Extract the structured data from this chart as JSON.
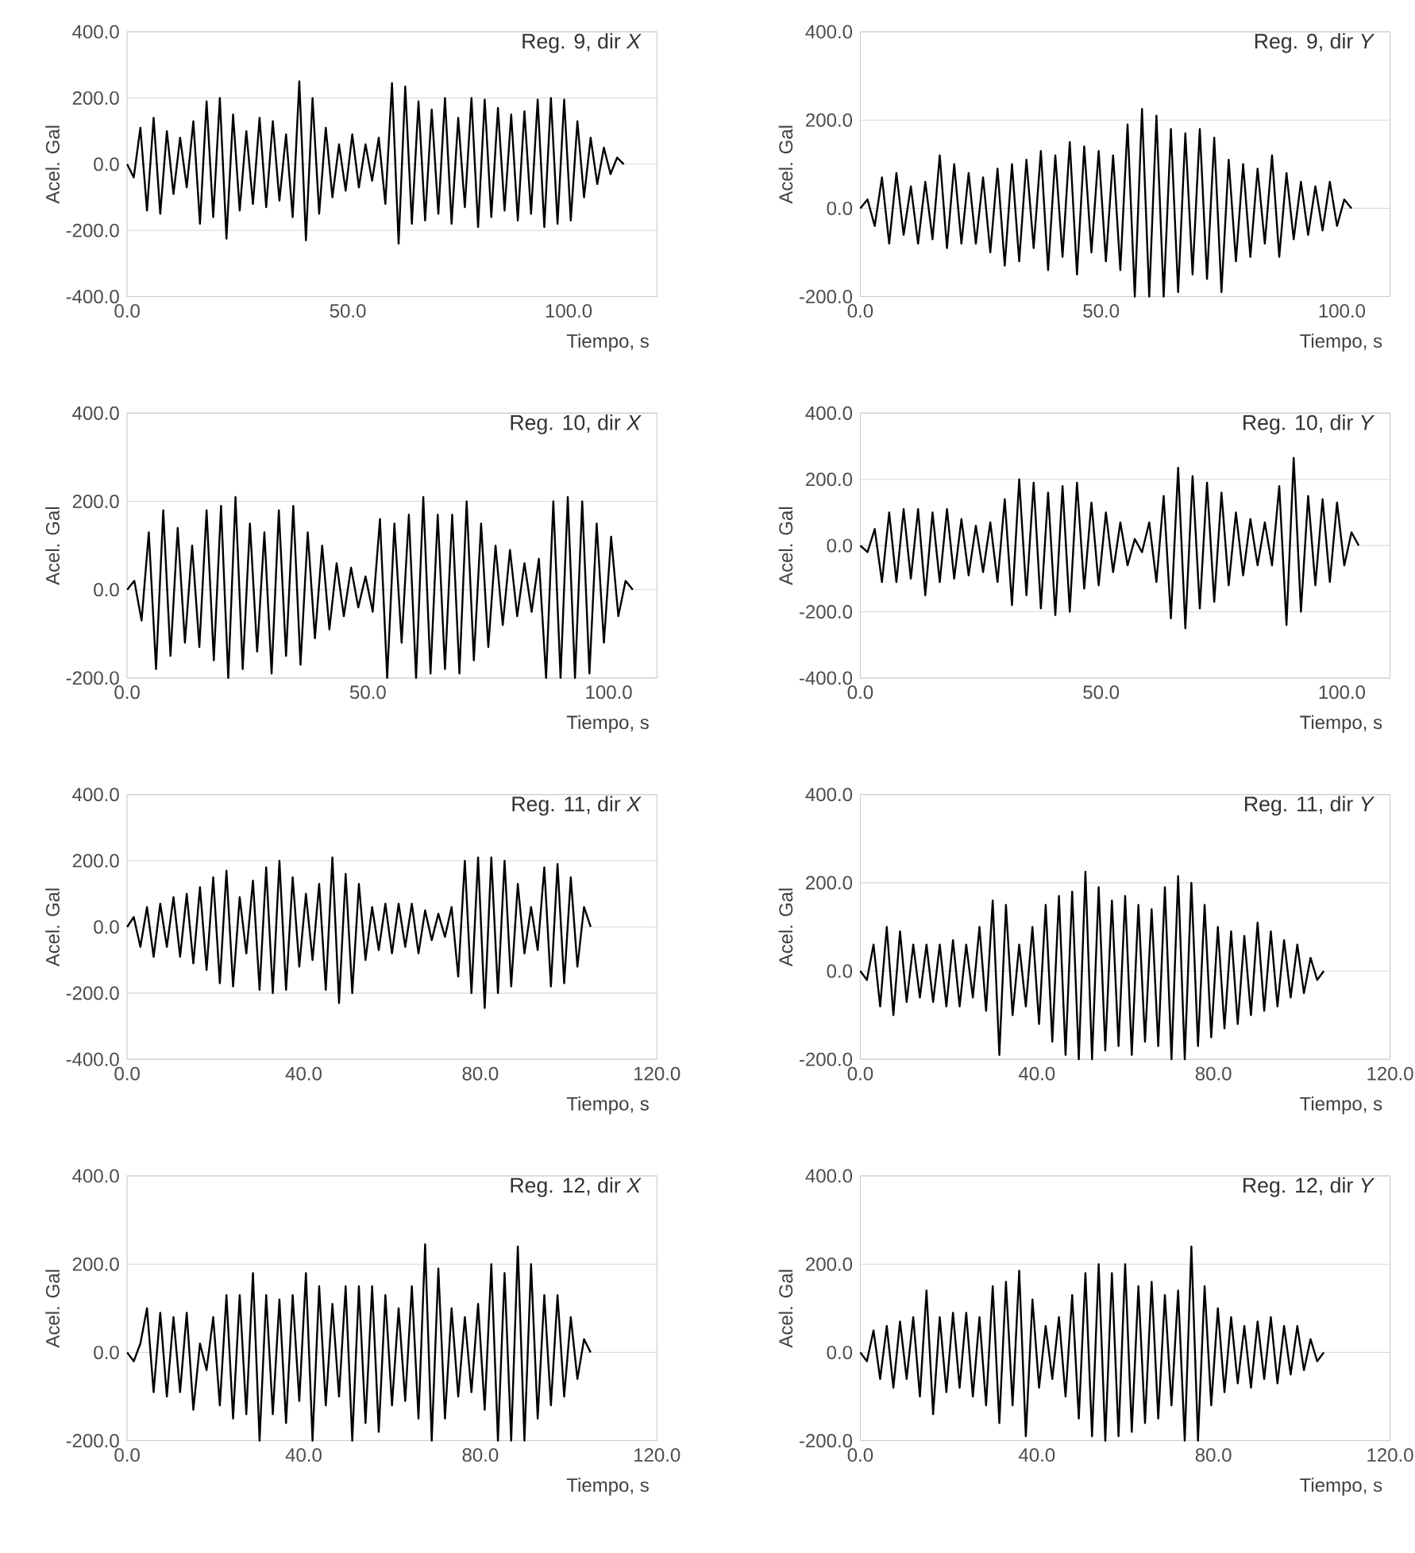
{
  "chart_data": [
    {
      "type": "line",
      "title": "Reg. 9, dir *X*",
      "xlabel": "Tiempo, s",
      "ylabel": "Acel. Gal",
      "xlim": [
        0,
        120
      ],
      "ylim": [
        -400,
        400
      ],
      "grid": "y",
      "xticks": [
        {
          "value": 0,
          "label": "0.0"
        },
        {
          "value": 50,
          "label": "50.0"
        },
        {
          "value": 100,
          "label": "100.0"
        }
      ],
      "yticks": [
        {
          "value": -400,
          "label": "-400.0"
        },
        {
          "value": -200,
          "label": "-200.0"
        },
        {
          "value": 0,
          "label": "0.0"
        },
        {
          "value": 200,
          "label": "200.0"
        },
        {
          "value": 400,
          "label": "400.0"
        }
      ],
      "series": [
        {
          "color": "#000000",
          "x": [
            0,
            1.5,
            3,
            4.5,
            6,
            7.5,
            9,
            10.5,
            12,
            13.5,
            15,
            16.5,
            18,
            19.5,
            21,
            22.5,
            24,
            25.5,
            27,
            28.5,
            30,
            31.5,
            33,
            34.5,
            36,
            37.5,
            39,
            40.5,
            42,
            43.5,
            45,
            46.5,
            48,
            49.5,
            51,
            52.5,
            54,
            55.5,
            57,
            58.5,
            60,
            61.5,
            63,
            64.5,
            66,
            67.5,
            69,
            70.5,
            72,
            73.5,
            75,
            76.5,
            78,
            79.5,
            81,
            82.5,
            84,
            85.5,
            87,
            88.5,
            90,
            91.5,
            93,
            94.5,
            96,
            97.5,
            99,
            100.5,
            102,
            103.5,
            105,
            106.5,
            108,
            109.5,
            111,
            112.5
          ],
          "values": [
            0,
            -40,
            110,
            -140,
            140,
            -150,
            100,
            -90,
            80,
            -70,
            130,
            -180,
            190,
            -160,
            200,
            -225,
            150,
            -140,
            100,
            -120,
            140,
            -130,
            130,
            -110,
            90,
            -160,
            250,
            -230,
            200,
            -150,
            110,
            -100,
            60,
            -80,
            90,
            -70,
            60,
            -50,
            80,
            -120,
            245,
            -240,
            235,
            -180,
            190,
            -170,
            165,
            -150,
            200,
            -180,
            140,
            -130,
            200,
            -190,
            195,
            -160,
            170,
            -140,
            150,
            -170,
            160,
            -150,
            195,
            -190,
            200,
            -180,
            195,
            -170,
            130,
            -100,
            80,
            -60,
            50,
            -30,
            20,
            0
          ]
        }
      ]
    },
    {
      "type": "line",
      "title": "Reg. 9, dir *Y*",
      "xlabel": "Tiempo, s",
      "ylabel": "Acel. Gal",
      "xlim": [
        0,
        110
      ],
      "ylim": [
        -200,
        400
      ],
      "grid": "y",
      "xticks": [
        {
          "value": 0,
          "label": "0.0"
        },
        {
          "value": 50,
          "label": "50.0"
        },
        {
          "value": 100,
          "label": "100.0"
        }
      ],
      "yticks": [
        {
          "value": -200,
          "label": "-200.0"
        },
        {
          "value": 0,
          "label": "0.0"
        },
        {
          "value": 200,
          "label": "200.0"
        },
        {
          "value": 400,
          "label": "400.0"
        }
      ],
      "series": [
        {
          "color": "#000000",
          "x": [
            0,
            1.5,
            3,
            4.5,
            6,
            7.5,
            9,
            10.5,
            12,
            13.5,
            15,
            16.5,
            18,
            19.5,
            21,
            22.5,
            24,
            25.5,
            27,
            28.5,
            30,
            31.5,
            33,
            34.5,
            36,
            37.5,
            39,
            40.5,
            42,
            43.5,
            45,
            46.5,
            48,
            49.5,
            51,
            52.5,
            54,
            55.5,
            57,
            58.5,
            60,
            61.5,
            63,
            64.5,
            66,
            67.5,
            69,
            70.5,
            72,
            73.5,
            75,
            76.5,
            78,
            79.5,
            81,
            82.5,
            84,
            85.5,
            87,
            88.5,
            90,
            91.5,
            93,
            94.5,
            96,
            97.5,
            99,
            100.5,
            102
          ],
          "values": [
            0,
            20,
            -40,
            70,
            -80,
            80,
            -60,
            50,
            -80,
            60,
            -70,
            120,
            -90,
            100,
            -80,
            80,
            -80,
            70,
            -100,
            90,
            -130,
            100,
            -120,
            110,
            -90,
            130,
            -140,
            120,
            -110,
            150,
            -150,
            140,
            -100,
            130,
            -120,
            120,
            -140,
            190,
            -200,
            225,
            -200,
            210,
            -200,
            180,
            -190,
            170,
            -150,
            180,
            -160,
            160,
            -190,
            110,
            -120,
            100,
            -110,
            90,
            -80,
            120,
            -110,
            80,
            -70,
            60,
            -60,
            50,
            -50,
            60,
            -40,
            20,
            0
          ]
        }
      ]
    },
    {
      "type": "line",
      "title": "Reg. 10, dir *X*",
      "xlabel": "Tiempo, s",
      "ylabel": "Acel. Gal",
      "xlim": [
        0,
        110
      ],
      "ylim": [
        -200,
        400
      ],
      "grid": "y",
      "xticks": [
        {
          "value": 0,
          "label": "0.0"
        },
        {
          "value": 50,
          "label": "50.0"
        },
        {
          "value": 100,
          "label": "100.0"
        }
      ],
      "yticks": [
        {
          "value": -200,
          "label": "-200.0"
        },
        {
          "value": 0,
          "label": "0.0"
        },
        {
          "value": 200,
          "label": "200.0"
        },
        {
          "value": 400,
          "label": "400.0"
        }
      ],
      "series": [
        {
          "color": "#000000",
          "x": [
            0,
            1.5,
            3,
            4.5,
            6,
            7.5,
            9,
            10.5,
            12,
            13.5,
            15,
            16.5,
            18,
            19.5,
            21,
            22.5,
            24,
            25.5,
            27,
            28.5,
            30,
            31.5,
            33,
            34.5,
            36,
            37.5,
            39,
            40.5,
            42,
            43.5,
            45,
            46.5,
            48,
            49.5,
            51,
            52.5,
            54,
            55.5,
            57,
            58.5,
            60,
            61.5,
            63,
            64.5,
            66,
            67.5,
            69,
            70.5,
            72,
            73.5,
            75,
            76.5,
            78,
            79.5,
            81,
            82.5,
            84,
            85.5,
            87,
            88.5,
            90,
            91.5,
            93,
            94.5,
            96,
            97.5,
            99,
            100.5,
            102,
            103.5,
            105
          ],
          "values": [
            0,
            20,
            -70,
            130,
            -180,
            180,
            -150,
            140,
            -120,
            100,
            -130,
            180,
            -160,
            190,
            -200,
            210,
            -180,
            150,
            -140,
            130,
            -190,
            180,
            -150,
            190,
            -170,
            130,
            -110,
            100,
            -90,
            60,
            -60,
            50,
            -40,
            30,
            -50,
            160,
            -200,
            150,
            -120,
            170,
            -200,
            210,
            -190,
            170,
            -180,
            170,
            -190,
            200,
            -160,
            150,
            -130,
            100,
            -80,
            90,
            -60,
            60,
            -50,
            70,
            -200,
            200,
            -200,
            210,
            -200,
            200,
            -190,
            150,
            -120,
            120,
            -60,
            20,
            0
          ]
        }
      ]
    },
    {
      "type": "line",
      "title": "Reg. 10, dir *Y*",
      "xlabel": "Tiempo, s",
      "ylabel": "Acel. Gal",
      "xlim": [
        0,
        110
      ],
      "ylim": [
        -400,
        400
      ],
      "grid": "y",
      "xticks": [
        {
          "value": 0,
          "label": "0.0"
        },
        {
          "value": 50,
          "label": "50.0"
        },
        {
          "value": 100,
          "label": "100.0"
        }
      ],
      "yticks": [
        {
          "value": -400,
          "label": "-400.0"
        },
        {
          "value": -200,
          "label": "-200.0"
        },
        {
          "value": 0,
          "label": "0.0"
        },
        {
          "value": 200,
          "label": "200.0"
        },
        {
          "value": 400,
          "label": "400.0"
        }
      ],
      "series": [
        {
          "color": "#000000",
          "x": [
            0,
            1.5,
            3,
            4.5,
            6,
            7.5,
            9,
            10.5,
            12,
            13.5,
            15,
            16.5,
            18,
            19.5,
            21,
            22.5,
            24,
            25.5,
            27,
            28.5,
            30,
            31.5,
            33,
            34.5,
            36,
            37.5,
            39,
            40.5,
            42,
            43.5,
            45,
            46.5,
            48,
            49.5,
            51,
            52.5,
            54,
            55.5,
            57,
            58.5,
            60,
            61.5,
            63,
            64.5,
            66,
            67.5,
            69,
            70.5,
            72,
            73.5,
            75,
            76.5,
            78,
            79.5,
            81,
            82.5,
            84,
            85.5,
            87,
            88.5,
            90,
            91.5,
            93,
            94.5,
            96,
            97.5,
            99,
            100.5,
            102,
            103.5
          ],
          "values": [
            0,
            -20,
            50,
            -110,
            100,
            -110,
            110,
            -100,
            110,
            -150,
            100,
            -110,
            110,
            -100,
            80,
            -90,
            60,
            -80,
            70,
            -110,
            140,
            -180,
            200,
            -150,
            190,
            -190,
            160,
            -210,
            180,
            -200,
            190,
            -130,
            130,
            -120,
            100,
            -80,
            70,
            -60,
            20,
            -20,
            70,
            -110,
            150,
            -220,
            235,
            -250,
            210,
            -190,
            190,
            -170,
            160,
            -120,
            100,
            -90,
            80,
            -60,
            70,
            -60,
            180,
            -240,
            265,
            -200,
            150,
            -120,
            140,
            -110,
            130,
            -60,
            40,
            0
          ]
        }
      ]
    },
    {
      "type": "line",
      "title": "Reg. 11, dir *X*",
      "xlabel": "Tiempo, s",
      "ylabel": "Acel. Gal",
      "xlim": [
        0,
        120
      ],
      "ylim": [
        -400,
        400
      ],
      "grid": "y",
      "xticks": [
        {
          "value": 0,
          "label": "0.0"
        },
        {
          "value": 40,
          "label": "40.0"
        },
        {
          "value": 80,
          "label": "80.0"
        },
        {
          "value": 120,
          "label": "120.0"
        }
      ],
      "yticks": [
        {
          "value": -400,
          "label": "-400.0"
        },
        {
          "value": -200,
          "label": "-200.0"
        },
        {
          "value": 0,
          "label": "0.0"
        },
        {
          "value": 200,
          "label": "200.0"
        },
        {
          "value": 400,
          "label": "400.0"
        }
      ],
      "series": [
        {
          "color": "#000000",
          "x": [
            0,
            1.5,
            3,
            4.5,
            6,
            7.5,
            9,
            10.5,
            12,
            13.5,
            15,
            16.5,
            18,
            19.5,
            21,
            22.5,
            24,
            25.5,
            27,
            28.5,
            30,
            31.5,
            33,
            34.5,
            36,
            37.5,
            39,
            40.5,
            42,
            43.5,
            45,
            46.5,
            48,
            49.5,
            51,
            52.5,
            54,
            55.5,
            57,
            58.5,
            60,
            61.5,
            63,
            64.5,
            66,
            67.5,
            69,
            70.5,
            72,
            73.5,
            75,
            76.5,
            78,
            79.5,
            81,
            82.5,
            84,
            85.5,
            87,
            88.5,
            90,
            91.5,
            93,
            94.5,
            96,
            97.5,
            99,
            100.5,
            102,
            103.5,
            105
          ],
          "values": [
            0,
            30,
            -60,
            60,
            -90,
            70,
            -60,
            90,
            -90,
            100,
            -110,
            120,
            -130,
            150,
            -170,
            170,
            -180,
            90,
            -80,
            140,
            -190,
            180,
            -200,
            200,
            -190,
            150,
            -120,
            100,
            -100,
            130,
            -190,
            210,
            -230,
            160,
            -200,
            130,
            -100,
            60,
            -70,
            70,
            -80,
            70,
            -60,
            70,
            -80,
            50,
            -40,
            40,
            -30,
            60,
            -150,
            200,
            -200,
            210,
            -245,
            210,
            -200,
            200,
            -180,
            130,
            -80,
            60,
            -70,
            180,
            -180,
            190,
            -170,
            150,
            -120,
            60,
            0
          ]
        }
      ]
    },
    {
      "type": "line",
      "title": "Reg. 11, dir *Y*",
      "xlabel": "Tiempo, s",
      "ylabel": "Acel. Gal",
      "xlim": [
        0,
        120
      ],
      "ylim": [
        -200,
        400
      ],
      "grid": "y",
      "xticks": [
        {
          "value": 0,
          "label": "0.0"
        },
        {
          "value": 40,
          "label": "40.0"
        },
        {
          "value": 80,
          "label": "80.0"
        },
        {
          "value": 120,
          "label": "120.0"
        }
      ],
      "yticks": [
        {
          "value": -200,
          "label": "-200.0"
        },
        {
          "value": 0,
          "label": "0.0"
        },
        {
          "value": 200,
          "label": "200.0"
        },
        {
          "value": 400,
          "label": "400.0"
        }
      ],
      "series": [
        {
          "color": "#000000",
          "x": [
            0,
            1.5,
            3,
            4.5,
            6,
            7.5,
            9,
            10.5,
            12,
            13.5,
            15,
            16.5,
            18,
            19.5,
            21,
            22.5,
            24,
            25.5,
            27,
            28.5,
            30,
            31.5,
            33,
            34.5,
            36,
            37.5,
            39,
            40.5,
            42,
            43.5,
            45,
            46.5,
            48,
            49.5,
            51,
            52.5,
            54,
            55.5,
            57,
            58.5,
            60,
            61.5,
            63,
            64.5,
            66,
            67.5,
            69,
            70.5,
            72,
            73.5,
            75,
            76.5,
            78,
            79.5,
            81,
            82.5,
            84,
            85.5,
            87,
            88.5,
            90,
            91.5,
            93,
            94.5,
            96,
            97.5,
            99,
            100.5,
            102,
            103.5,
            105
          ],
          "values": [
            0,
            -20,
            60,
            -80,
            100,
            -100,
            90,
            -70,
            60,
            -60,
            60,
            -70,
            60,
            -80,
            70,
            -80,
            60,
            -60,
            100,
            -90,
            160,
            -190,
            150,
            -100,
            60,
            -80,
            100,
            -120,
            150,
            -160,
            170,
            -190,
            180,
            -200,
            225,
            -200,
            190,
            -180,
            160,
            -170,
            170,
            -190,
            150,
            -160,
            140,
            -170,
            190,
            -200,
            215,
            -200,
            200,
            -170,
            150,
            -150,
            100,
            -130,
            90,
            -120,
            80,
            -100,
            110,
            -90,
            90,
            -80,
            70,
            -60,
            60,
            -50,
            30,
            -20,
            0
          ]
        }
      ]
    },
    {
      "type": "line",
      "title": "Reg. 12, dir *X*",
      "xlabel": "Tiempo, s",
      "ylabel": "Acel. Gal",
      "xlim": [
        0,
        120
      ],
      "ylim": [
        -200,
        400
      ],
      "grid": "y",
      "xticks": [
        {
          "value": 0,
          "label": "0.0"
        },
        {
          "value": 40,
          "label": "40.0"
        },
        {
          "value": 80,
          "label": "80.0"
        },
        {
          "value": 120,
          "label": "120.0"
        }
      ],
      "yticks": [
        {
          "value": -200,
          "label": "-200.0"
        },
        {
          "value": 0,
          "label": "0.0"
        },
        {
          "value": 200,
          "label": "200.0"
        },
        {
          "value": 400,
          "label": "400.0"
        }
      ],
      "series": [
        {
          "color": "#000000",
          "x": [
            0,
            1.5,
            3,
            4.5,
            6,
            7.5,
            9,
            10.5,
            12,
            13.5,
            15,
            16.5,
            18,
            19.5,
            21,
            22.5,
            24,
            25.5,
            27,
            28.5,
            30,
            31.5,
            33,
            34.5,
            36,
            37.5,
            39,
            40.5,
            42,
            43.5,
            45,
            46.5,
            48,
            49.5,
            51,
            52.5,
            54,
            55.5,
            57,
            58.5,
            60,
            61.5,
            63,
            64.5,
            66,
            67.5,
            69,
            70.5,
            72,
            73.5,
            75,
            76.5,
            78,
            79.5,
            81,
            82.5,
            84,
            85.5,
            87,
            88.5,
            90,
            91.5,
            93,
            94.5,
            96,
            97.5,
            99,
            100.5,
            102,
            103.5,
            105
          ],
          "values": [
            0,
            -20,
            20,
            100,
            -90,
            90,
            -100,
            80,
            -90,
            90,
            -130,
            20,
            -40,
            80,
            -120,
            130,
            -150,
            130,
            -140,
            180,
            -200,
            130,
            -140,
            120,
            -160,
            130,
            -110,
            180,
            -200,
            150,
            -120,
            110,
            -100,
            150,
            -200,
            150,
            -160,
            150,
            -180,
            130,
            -120,
            100,
            -110,
            150,
            -150,
            245,
            -200,
            190,
            -150,
            100,
            -100,
            80,
            -90,
            110,
            -130,
            200,
            -200,
            180,
            -200,
            240,
            -200,
            200,
            -150,
            130,
            -120,
            130,
            -100,
            80,
            -60,
            30,
            0
          ]
        }
      ]
    },
    {
      "type": "line",
      "title": "Reg. 12, dir *Y*",
      "xlabel": "Tiempo, s",
      "ylabel": "Acel. Gal",
      "xlim": [
        0,
        120
      ],
      "ylim": [
        -200,
        400
      ],
      "grid": "y",
      "xticks": [
        {
          "value": 0,
          "label": "0.0"
        },
        {
          "value": 40,
          "label": "40.0"
        },
        {
          "value": 80,
          "label": "80.0"
        },
        {
          "value": 120,
          "label": "120.0"
        }
      ],
      "yticks": [
        {
          "value": -200,
          "label": "-200.0"
        },
        {
          "value": 0,
          "label": "0.0"
        },
        {
          "value": 200,
          "label": "200.0"
        },
        {
          "value": 400,
          "label": "400.0"
        }
      ],
      "series": [
        {
          "color": "#000000",
          "x": [
            0,
            1.5,
            3,
            4.5,
            6,
            7.5,
            9,
            10.5,
            12,
            13.5,
            15,
            16.5,
            18,
            19.5,
            21,
            22.5,
            24,
            25.5,
            27,
            28.5,
            30,
            31.5,
            33,
            34.5,
            36,
            37.5,
            39,
            40.5,
            42,
            43.5,
            45,
            46.5,
            48,
            49.5,
            51,
            52.5,
            54,
            55.5,
            57,
            58.5,
            60,
            61.5,
            63,
            64.5,
            66,
            67.5,
            69,
            70.5,
            72,
            73.5,
            75,
            76.5,
            78,
            79.5,
            81,
            82.5,
            84,
            85.5,
            87,
            88.5,
            90,
            91.5,
            93,
            94.5,
            96,
            97.5,
            99,
            100.5,
            102,
            103.5,
            105
          ],
          "values": [
            0,
            -20,
            50,
            -60,
            60,
            -80,
            70,
            -60,
            80,
            -100,
            140,
            -140,
            80,
            -90,
            90,
            -80,
            90,
            -100,
            80,
            -120,
            150,
            -160,
            160,
            -120,
            185,
            -190,
            120,
            -80,
            60,
            -60,
            80,
            -100,
            130,
            -150,
            180,
            -190,
            200,
            -200,
            180,
            -190,
            200,
            -180,
            150,
            -160,
            160,
            -150,
            130,
            -120,
            140,
            -200,
            240,
            -200,
            150,
            -120,
            100,
            -90,
            80,
            -70,
            60,
            -80,
            70,
            -60,
            80,
            -70,
            60,
            -50,
            60,
            -40,
            30,
            -20,
            0
          ]
        }
      ]
    }
  ]
}
